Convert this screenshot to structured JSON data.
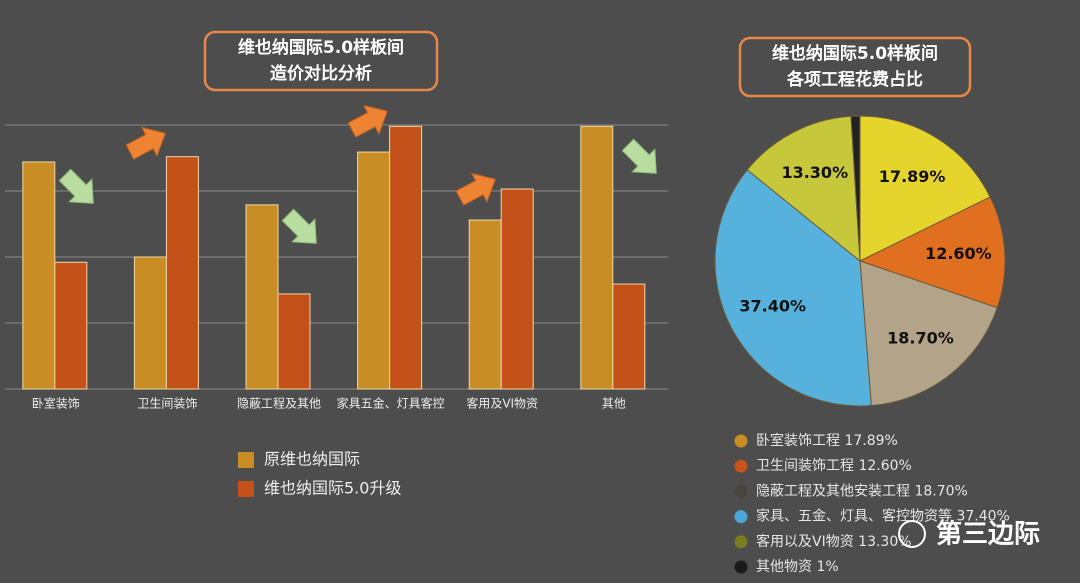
{
  "charts": [
    {
      "type": "bar",
      "title": [
        "维也纳国际5.0样板间",
        "造价对比分析"
      ],
      "categories": [
        "卧室装饰",
        "卫生间装饰",
        "隐蔽工程及其他",
        "家具五金、灯具客控",
        "客用及VI物资",
        "其他"
      ],
      "series": [
        {
          "name": "原维也纳国际",
          "color": "#c98d25",
          "values": [
            3.44,
            2.0,
            2.79,
            3.59,
            2.56,
            3.98
          ]
        },
        {
          "name": "维也纳国际5.0升级",
          "color": "#c4501a",
          "values": [
            1.92,
            3.52,
            1.44,
            3.98,
            3.03,
            1.59
          ]
        }
      ],
      "ylim": [
        0,
        4
      ],
      "yticks": [
        0,
        1,
        2,
        3,
        4
      ],
      "grid": true
    },
    {
      "type": "pie",
      "title": [
        "维也纳国际5.0样板间",
        "各项工程花费占比"
      ],
      "categories": [
        "卧室装饰工程 17.89%",
        "卫生间装饰工程 12.60%",
        "隐蔽工程及其他安装工程 18.70%",
        "家具、五金、灯具、客控物资等 37.40%",
        "客用以及VI物资 13.30%",
        "其他物资 1%"
      ],
      "values": [
        17.89,
        12.6,
        18.7,
        37.4,
        13.3,
        1
      ],
      "value_labels": [
        "17.89%",
        "12.60%",
        "18.70%",
        "37.40%",
        "13.30%",
        null
      ],
      "colors": [
        "#e5d42c",
        "#e06f1f",
        "#b3a389",
        "#56b2dc",
        "#c6c73a",
        "#222222"
      ],
      "legend_colors": [
        "#c98d25",
        "#c9531c",
        "#4a4440",
        "#4aa7d6",
        "#7a7d1f",
        "#1a1a1a"
      ]
    }
  ],
  "watermark": "第三边际"
}
